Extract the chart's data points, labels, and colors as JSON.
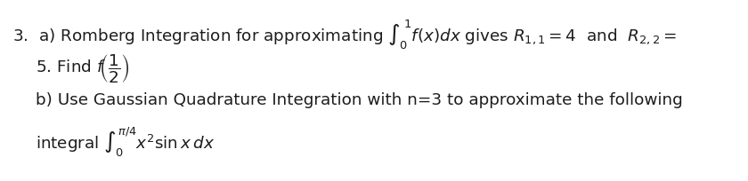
{
  "background_color": "#ffffff",
  "line1": "3.  a) Romberg Integration for approximating $\\int_0^{\\,1} f(x)dx$ gives $R_{1,1} = 4$  and  $R_{2,2} =$",
  "line2": "5. Find $f\\!\\left(\\dfrac{1}{2}\\right)$",
  "line3": "b) Use Gaussian Quadrature Integration with n=3 to approximate the following",
  "line4": "integral $\\int_0^{\\pi/4} x^2 \\sin x\\, dx$",
  "font_size": 13.2,
  "text_color": "#1c1c1c"
}
